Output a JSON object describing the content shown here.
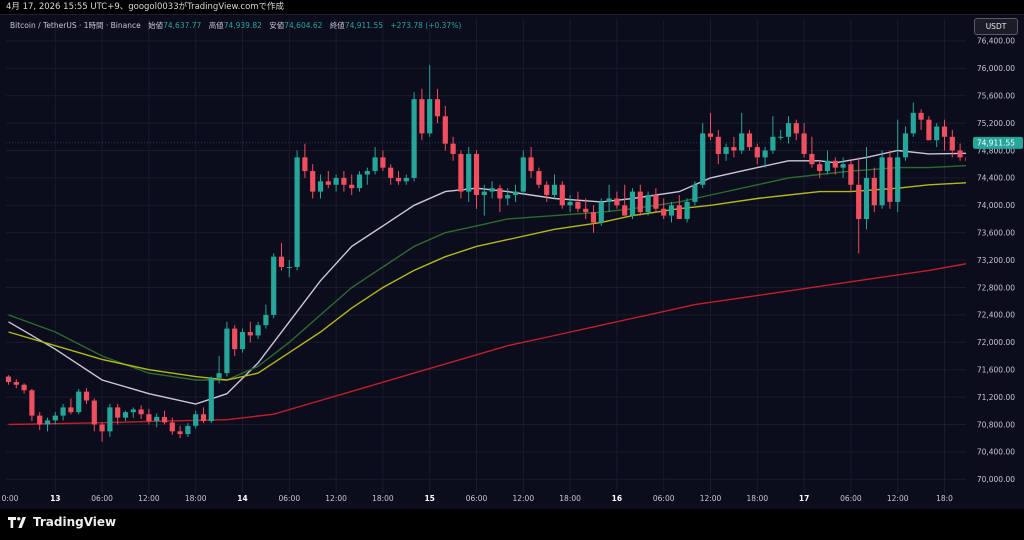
{
  "header": {
    "caption": "4月 17, 2026 15:55 UTC+9、googol0033がTradingView.comで作成"
  },
  "legend": {
    "symbol": "Bitcoin / TetherUS · 1時間 · Binance",
    "open_label": "始値",
    "open": "74,637.77",
    "high_label": "高値",
    "high": "74,939.82",
    "low_label": "安値",
    "low": "74,604.62",
    "close_label": "終値",
    "close": "74,911.55",
    "change": "+273.78 (+0.37%)"
  },
  "currency_badge": "USDT",
  "brand": {
    "name": "TradingView",
    "logo_icon": "tradingview-logo-icon"
  },
  "colors": {
    "up": "#26a69a",
    "down": "#ef4f5f",
    "background": "#0b0c1c",
    "grid": "#1a1c2c",
    "ma_fast": "#c9c7d8",
    "ma_mid": "#2e6b2e",
    "ma_slow": "#b3b81c",
    "ma_long": "#c0202a"
  },
  "chart_data": {
    "type": "candlestick",
    "y_ticks": [
      70000,
      70400,
      70800,
      71200,
      71600,
      72000,
      72400,
      72800,
      73200,
      73600,
      74000,
      74400,
      74800,
      75200,
      75600,
      76000,
      76400
    ],
    "y_tick_labels": [
      "70,000.00",
      "70,400.00",
      "70,800.00",
      "71,200.00",
      "71,600.00",
      "72,000.00",
      "72,400.00",
      "72,800.00",
      "73,200.00",
      "73,600.00",
      "74,000.00",
      "74,400.00",
      "74,800.00",
      "75,200.00",
      "75,600.00",
      "76,000.00",
      "76,400.00"
    ],
    "ylim": [
      69800,
      76720
    ],
    "x_ticks": [
      {
        "label": "0:00",
        "bar": -2
      },
      {
        "label": "13",
        "bar": 6
      },
      {
        "label": "06:00",
        "bar": 12
      },
      {
        "label": "12:00",
        "bar": 18
      },
      {
        "label": "18:00",
        "bar": 24
      },
      {
        "label": "14",
        "bar": 30
      },
      {
        "label": "06:00",
        "bar": 36
      },
      {
        "label": "12:00",
        "bar": 42
      },
      {
        "label": "18:00",
        "bar": 48
      },
      {
        "label": "15",
        "bar": 54
      },
      {
        "label": "06:00",
        "bar": 60
      },
      {
        "label": "12:00",
        "bar": 66
      },
      {
        "label": "18:00",
        "bar": 72
      },
      {
        "label": "16",
        "bar": 78
      },
      {
        "label": "06:00",
        "bar": 84
      },
      {
        "label": "12:00",
        "bar": 90
      },
      {
        "label": "18:00",
        "bar": 96
      },
      {
        "label": "17",
        "bar": 102
      },
      {
        "label": "06:00",
        "bar": 108
      },
      {
        "label": "12:00",
        "bar": 114
      },
      {
        "label": "18:0",
        "bar": 120
      }
    ],
    "last_price": 74911.55,
    "last_price_label": "74,911.55",
    "candles": [
      [
        71500,
        71520,
        71380,
        71420
      ],
      [
        71420,
        71460,
        71330,
        71380
      ],
      [
        71380,
        71400,
        71250,
        71300
      ],
      [
        71300,
        71320,
        70850,
        70930
      ],
      [
        70930,
        70980,
        70720,
        70800
      ],
      [
        70800,
        70900,
        70700,
        70860
      ],
      [
        70860,
        70980,
        70800,
        70930
      ],
      [
        70930,
        71100,
        70860,
        71050
      ],
      [
        71050,
        71180,
        70950,
        70980
      ],
      [
        70980,
        71320,
        70950,
        71280
      ],
      [
        71280,
        71330,
        71100,
        71150
      ],
      [
        71150,
        71180,
        70700,
        70800
      ],
      [
        70800,
        70830,
        70550,
        70700
      ],
      [
        70700,
        71100,
        70620,
        71050
      ],
      [
        71050,
        71100,
        70800,
        70900
      ],
      [
        70900,
        71000,
        70850,
        70980
      ],
      [
        70980,
        71050,
        70900,
        71020
      ],
      [
        71020,
        71080,
        70880,
        70950
      ],
      [
        70950,
        71030,
        70800,
        70850
      ],
      [
        70850,
        70960,
        70760,
        70910
      ],
      [
        70910,
        71000,
        70800,
        70830
      ],
      [
        70830,
        70900,
        70650,
        70700
      ],
      [
        70700,
        70780,
        70600,
        70660
      ],
      [
        70660,
        70820,
        70620,
        70780
      ],
      [
        70780,
        71000,
        70740,
        70950
      ],
      [
        70950,
        71050,
        70820,
        70850
      ],
      [
        70850,
        71500,
        70820,
        71480
      ],
      [
        71480,
        71800,
        71400,
        71550
      ],
      [
        71550,
        72300,
        71500,
        72200
      ],
      [
        72200,
        72250,
        71800,
        71900
      ],
      [
        71900,
        72200,
        71850,
        72150
      ],
      [
        72150,
        72300,
        72000,
        72100
      ],
      [
        72100,
        72300,
        72050,
        72250
      ],
      [
        72250,
        72550,
        72200,
        72400
      ],
      [
        72400,
        73300,
        72350,
        73250
      ],
      [
        73250,
        73450,
        73050,
        73100
      ],
      [
        73100,
        73200,
        72950,
        73100
      ],
      [
        73100,
        74800,
        73050,
        74700
      ],
      [
        74700,
        74900,
        74400,
        74500
      ],
      [
        74500,
        74600,
        74100,
        74200
      ],
      [
        74200,
        74450,
        74100,
        74350
      ],
      [
        74350,
        74500,
        74250,
        74300
      ],
      [
        74300,
        74450,
        74200,
        74400
      ],
      [
        74400,
        74500,
        74200,
        74300
      ],
      [
        74300,
        74450,
        74150,
        74250
      ],
      [
        74250,
        74500,
        74200,
        74450
      ],
      [
        74450,
        74550,
        74300,
        74500
      ],
      [
        74500,
        74850,
        74450,
        74700
      ],
      [
        74700,
        74800,
        74500,
        74550
      ],
      [
        74550,
        74600,
        74300,
        74400
      ],
      [
        74400,
        74500,
        74300,
        74350
      ],
      [
        74350,
        74450,
        74300,
        74400
      ],
      [
        74400,
        75650,
        74350,
        75550
      ],
      [
        75550,
        75700,
        74950,
        75050
      ],
      [
        75050,
        76050,
        75000,
        75550
      ],
      [
        75550,
        75700,
        75200,
        75300
      ],
      [
        75300,
        75450,
        74800,
        74900
      ],
      [
        74900,
        75000,
        74650,
        74750
      ],
      [
        74750,
        74800,
        74100,
        74200
      ],
      [
        74200,
        74850,
        74050,
        74750
      ],
      [
        74750,
        74800,
        73950,
        74150
      ],
      [
        74150,
        74300,
        73850,
        74200
      ],
      [
        74200,
        74350,
        74100,
        74250
      ],
      [
        74250,
        74300,
        73900,
        74100
      ],
      [
        74100,
        74250,
        74000,
        74150
      ],
      [
        74150,
        74300,
        74050,
        74200
      ],
      [
        74200,
        74800,
        74150,
        74700
      ],
      [
        74700,
        74850,
        74400,
        74500
      ],
      [
        74500,
        74550,
        74250,
        74300
      ],
      [
        74300,
        74350,
        74050,
        74150
      ],
      [
        74150,
        74450,
        74100,
        74300
      ],
      [
        74300,
        74350,
        73950,
        74000
      ],
      [
        74000,
        74150,
        73900,
        74050
      ],
      [
        74050,
        74200,
        73900,
        73950
      ],
      [
        73950,
        74100,
        73800,
        73900
      ],
      [
        73900,
        74000,
        73600,
        73750
      ],
      [
        73750,
        74100,
        73700,
        74050
      ],
      [
        74050,
        74300,
        73900,
        74100
      ],
      [
        74100,
        74200,
        73950,
        74000
      ],
      [
        74000,
        74300,
        73850,
        73850
      ],
      [
        73850,
        74250,
        73800,
        74200
      ],
      [
        74200,
        74300,
        73850,
        73900
      ],
      [
        73900,
        74200,
        73850,
        74150
      ],
      [
        74150,
        74250,
        73900,
        73950
      ],
      [
        73950,
        74100,
        73800,
        73850
      ],
      [
        73850,
        74050,
        73750,
        74000
      ],
      [
        74000,
        74150,
        73800,
        73800
      ],
      [
        73800,
        74100,
        73750,
        74050
      ],
      [
        74050,
        74350,
        74000,
        74300
      ],
      [
        74300,
        75200,
        74250,
        75050
      ],
      [
        75050,
        75350,
        74950,
        75000
      ],
      [
        75000,
        75100,
        74600,
        74750
      ],
      [
        74750,
        74900,
        74650,
        74850
      ],
      [
        74850,
        75000,
        74700,
        74800
      ],
      [
        74800,
        75350,
        74750,
        75050
      ],
      [
        75050,
        75100,
        74800,
        74850
      ],
      [
        74850,
        74900,
        74600,
        74700
      ],
      [
        74700,
        74850,
        74550,
        74800
      ],
      [
        74800,
        75300,
        74750,
        75000
      ],
      [
        75000,
        75100,
        74950,
        75000
      ],
      [
        75000,
        75300,
        74900,
        75200
      ],
      [
        75200,
        75250,
        74950,
        75050
      ],
      [
        75050,
        75200,
        74700,
        74750
      ],
      [
        74750,
        75000,
        74550,
        74600
      ],
      [
        74600,
        74650,
        74400,
        74500
      ],
      [
        74500,
        74800,
        74450,
        74650
      ],
      [
        74650,
        74700,
        74450,
        74550
      ],
      [
        74550,
        74700,
        74400,
        74600
      ],
      [
        74600,
        74650,
        74200,
        74300
      ],
      [
        74300,
        74700,
        73300,
        73800
      ],
      [
        73800,
        74850,
        73650,
        74400
      ],
      [
        74400,
        74550,
        73900,
        74000
      ],
      [
        74000,
        74800,
        73950,
        74700
      ],
      [
        74700,
        74800,
        73950,
        74050
      ],
      [
        74050,
        75250,
        73900,
        74700
      ],
      [
        74700,
        75150,
        74650,
        75050
      ],
      [
        75050,
        75500,
        75000,
        75350
      ],
      [
        75350,
        75400,
        75100,
        75250
      ],
      [
        75250,
        75300,
        74950,
        74950
      ],
      [
        74950,
        75200,
        74850,
        75150
      ],
      [
        75150,
        75250,
        74800,
        75000
      ],
      [
        75000,
        75100,
        74700,
        74800
      ],
      [
        74800,
        74900,
        74650,
        74700
      ],
      [
        74700,
        74800,
        74600,
        74650
      ],
      [
        74650,
        74850,
        74550,
        74700
      ],
      [
        74700,
        74750,
        74550,
        74640
      ],
      [
        74640,
        74940,
        74600,
        74910
      ]
    ],
    "series": [
      {
        "name": "",
        "color": "#c9c7d8",
        "points": [
          [
            0,
            72300
          ],
          [
            6,
            71900
          ],
          [
            12,
            71450
          ],
          [
            18,
            71250
          ],
          [
            24,
            71100
          ],
          [
            28,
            71250
          ],
          [
            32,
            71700
          ],
          [
            36,
            72300
          ],
          [
            40,
            72900
          ],
          [
            44,
            73400
          ],
          [
            48,
            73700
          ],
          [
            52,
            74000
          ],
          [
            56,
            74200
          ],
          [
            60,
            74250
          ],
          [
            64,
            74200
          ],
          [
            70,
            74100
          ],
          [
            76,
            74050
          ],
          [
            80,
            74100
          ],
          [
            86,
            74200
          ],
          [
            90,
            74400
          ],
          [
            96,
            74550
          ],
          [
            100,
            74650
          ],
          [
            104,
            74650
          ],
          [
            106,
            74620
          ],
          [
            110,
            74700
          ],
          [
            114,
            74800
          ],
          [
            118,
            74750
          ],
          [
            123,
            74760
          ]
        ]
      },
      {
        "name": "",
        "color": "#2e6b2e",
        "points": [
          [
            0,
            72400
          ],
          [
            6,
            72150
          ],
          [
            12,
            71800
          ],
          [
            18,
            71550
          ],
          [
            24,
            71450
          ],
          [
            28,
            71450
          ],
          [
            32,
            71650
          ],
          [
            36,
            72000
          ],
          [
            40,
            72400
          ],
          [
            44,
            72800
          ],
          [
            48,
            73100
          ],
          [
            52,
            73400
          ],
          [
            56,
            73600
          ],
          [
            60,
            73700
          ],
          [
            64,
            73800
          ],
          [
            70,
            73850
          ],
          [
            76,
            73900
          ],
          [
            80,
            73950
          ],
          [
            86,
            74050
          ],
          [
            90,
            74150
          ],
          [
            96,
            74300
          ],
          [
            100,
            74400
          ],
          [
            104,
            74450
          ],
          [
            108,
            74500
          ],
          [
            114,
            74550
          ],
          [
            118,
            74550
          ],
          [
            123,
            74580
          ]
        ]
      },
      {
        "name": "",
        "color": "#b3b81c",
        "points": [
          [
            0,
            72150
          ],
          [
            6,
            71950
          ],
          [
            12,
            71750
          ],
          [
            18,
            71600
          ],
          [
            24,
            71500
          ],
          [
            28,
            71450
          ],
          [
            32,
            71550
          ],
          [
            36,
            71850
          ],
          [
            40,
            72150
          ],
          [
            44,
            72500
          ],
          [
            48,
            72800
          ],
          [
            52,
            73050
          ],
          [
            56,
            73250
          ],
          [
            60,
            73400
          ],
          [
            64,
            73500
          ],
          [
            70,
            73650
          ],
          [
            76,
            73750
          ],
          [
            80,
            73850
          ],
          [
            86,
            73950
          ],
          [
            90,
            74000
          ],
          [
            96,
            74100
          ],
          [
            100,
            74150
          ],
          [
            104,
            74200
          ],
          [
            108,
            74200
          ],
          [
            114,
            74250
          ],
          [
            118,
            74300
          ],
          [
            123,
            74330
          ]
        ]
      },
      {
        "name": "",
        "color": "#c0202a",
        "points": [
          [
            0,
            70800
          ],
          [
            10,
            70820
          ],
          [
            20,
            70850
          ],
          [
            28,
            70870
          ],
          [
            34,
            70950
          ],
          [
            40,
            71150
          ],
          [
            46,
            71350
          ],
          [
            52,
            71550
          ],
          [
            58,
            71750
          ],
          [
            64,
            71950
          ],
          [
            70,
            72100
          ],
          [
            76,
            72250
          ],
          [
            82,
            72400
          ],
          [
            88,
            72550
          ],
          [
            94,
            72650
          ],
          [
            100,
            72750
          ],
          [
            106,
            72850
          ],
          [
            112,
            72950
          ],
          [
            118,
            73050
          ],
          [
            123,
            73150
          ]
        ]
      }
    ]
  }
}
